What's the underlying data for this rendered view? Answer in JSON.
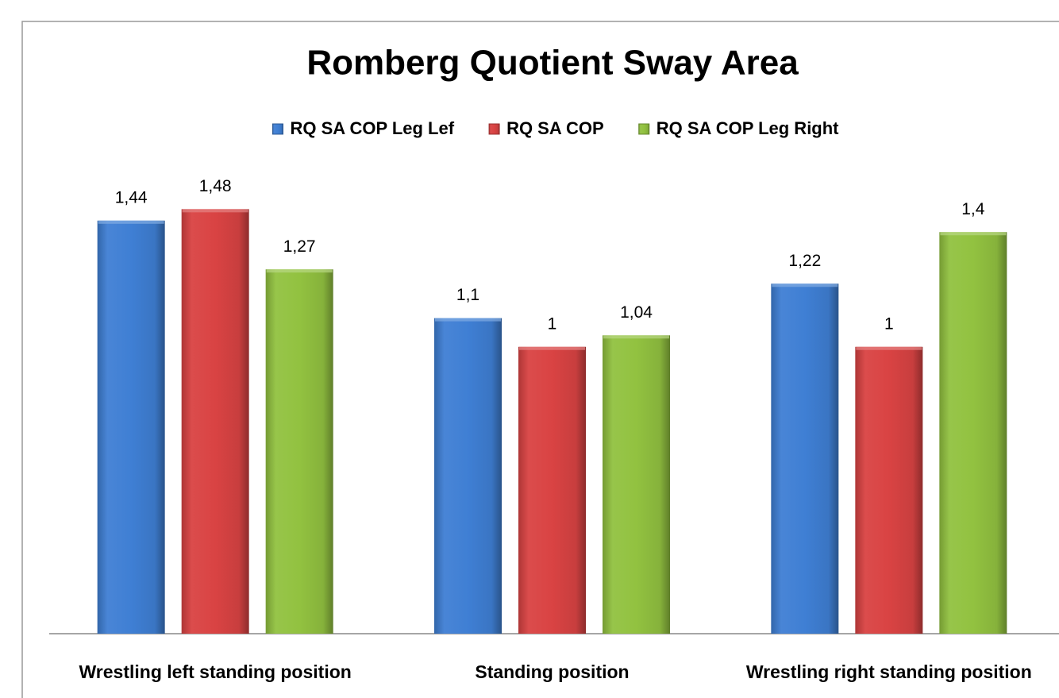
{
  "chart_data": {
    "type": "bar",
    "title": "Romberg Quotient Sway Area",
    "categories": [
      "Wrestling left standing  position",
      "Standing position",
      "Wrestling right standing  position"
    ],
    "series": [
      {
        "name": "RQ SA COP Leg Lef",
        "color": "#3f7fd4",
        "values": [
          1.44,
          1.1,
          1.22
        ],
        "value_labels": [
          "1,44",
          "1,1",
          "1,22"
        ]
      },
      {
        "name": "RQ SA COP",
        "color": "#d94343",
        "values": [
          1.48,
          1,
          1
        ],
        "value_labels": [
          "1,48",
          "1",
          "1"
        ]
      },
      {
        "name": "RQ SA COP Leg Right",
        "color": "#92c240",
        "values": [
          1.27,
          1.04,
          1.4
        ],
        "value_labels": [
          "1,27",
          "1,04",
          "1,4"
        ]
      }
    ],
    "ylim": [
      0,
      1.6
    ],
    "legend": "top"
  }
}
